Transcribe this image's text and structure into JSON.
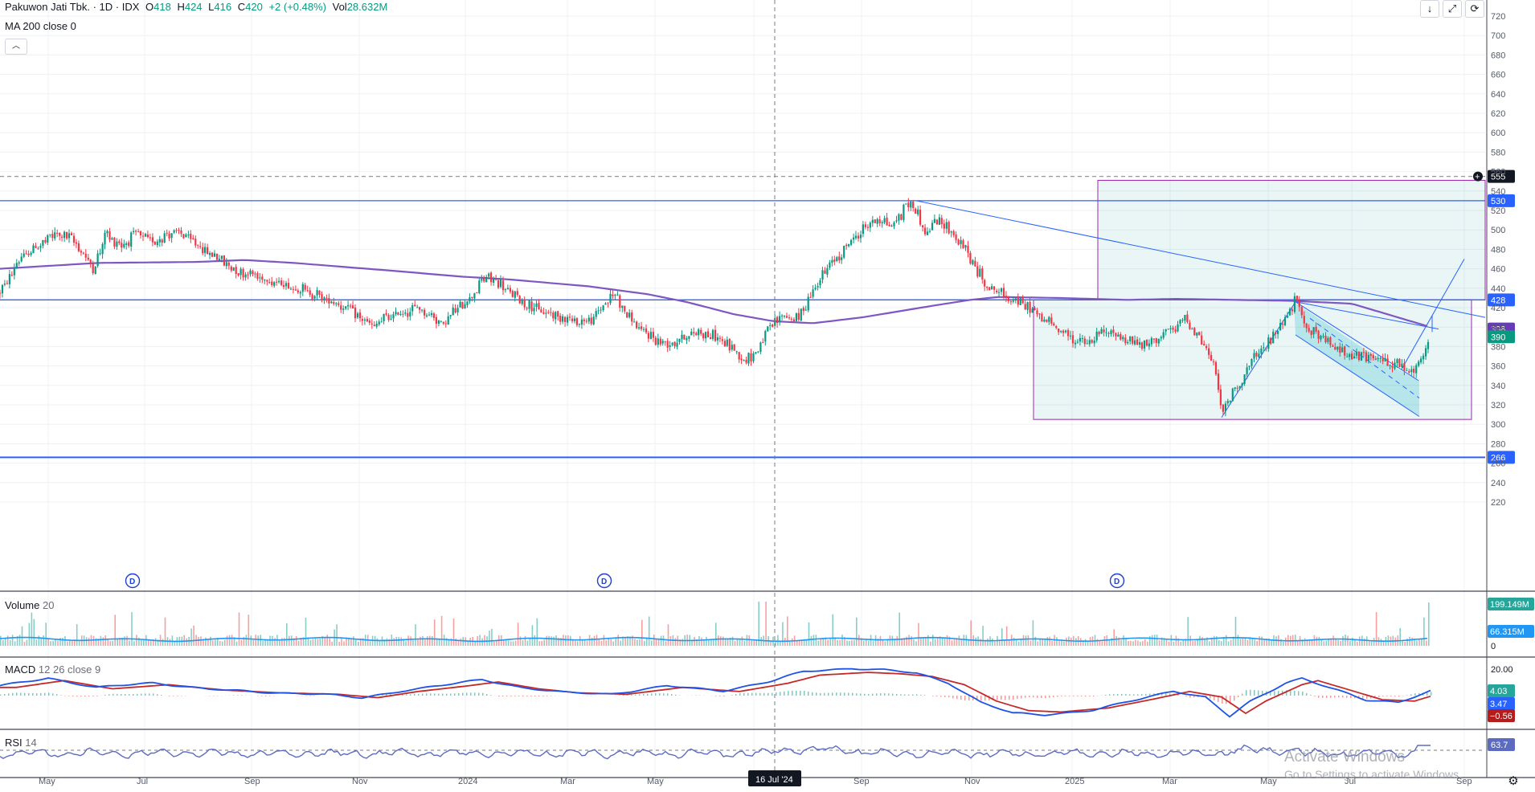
{
  "header": {
    "symbol": "Pakuwon Jati Tbk. · 1D · IDX",
    "o_label": "O",
    "o_value": "418",
    "h_label": "H",
    "h_value": "424",
    "l_label": "L",
    "l_value": "416",
    "c_label": "C",
    "c_value": "420",
    "change": "+2 (+0.48%)",
    "vol_label": "Vol",
    "vol_value": "28.632M",
    "ma_label": "MA 200 close 0"
  },
  "panes": {
    "volume_title": "Volume",
    "volume_param": "20",
    "macd_title": "MACD",
    "macd_params": "12 26 close 9",
    "rsi_title": "RSI",
    "rsi_param": "14"
  },
  "crosshair_date": "16 Jul '24",
  "watermark": {
    "line1": "Activate Windows",
    "line2": "Go to Settings to activate Windows."
  },
  "icons": [
    "download-icon",
    "fullscreen-icon",
    "refresh-icon",
    "collapse-icon",
    "settings-icon"
  ],
  "chart_data": {
    "type": "candlestick",
    "x_ticks": [
      "May",
      "Jul",
      "Sep",
      "Nov",
      "2024",
      "Mar",
      "May",
      "Jul",
      "Sep",
      "Nov",
      "2025",
      "Mar",
      "May",
      "Jul",
      "Sep"
    ],
    "price_axis": {
      "ticks": [
        "720",
        "700",
        "680",
        "660",
        "640",
        "620",
        "600",
        "580",
        "560",
        "540",
        "520",
        "500",
        "480",
        "460",
        "440",
        "420",
        "400",
        "380",
        "360",
        "340",
        "320",
        "300",
        "280",
        "260",
        "240",
        "220"
      ],
      "ylim": [
        220,
        720
      ]
    },
    "price_anchors": [
      [
        0,
        435
      ],
      [
        20,
        470
      ],
      [
        45,
        488
      ],
      [
        58,
        496
      ],
      [
        75,
        490
      ],
      [
        88,
        470
      ],
      [
        95,
        462
      ],
      [
        105,
        482
      ],
      [
        108,
        505
      ],
      [
        112,
        490
      ],
      [
        125,
        485
      ],
      [
        140,
        496
      ],
      [
        155,
        487
      ],
      [
        165,
        493
      ],
      [
        180,
        498
      ],
      [
        195,
        490
      ],
      [
        210,
        478
      ],
      [
        225,
        470
      ],
      [
        240,
        458
      ],
      [
        255,
        455
      ],
      [
        270,
        450
      ],
      [
        290,
        444
      ],
      [
        310,
        438
      ],
      [
        330,
        430
      ],
      [
        350,
        422
      ],
      [
        365,
        412
      ],
      [
        380,
        400
      ],
      [
        395,
        410
      ],
      [
        410,
        415
      ],
      [
        425,
        420
      ],
      [
        440,
        412
      ],
      [
        452,
        402
      ],
      [
        465,
        418
      ],
      [
        480,
        430
      ],
      [
        490,
        445
      ],
      [
        498,
        452
      ],
      [
        505,
        448
      ],
      [
        515,
        440
      ],
      [
        530,
        428
      ],
      [
        545,
        420
      ],
      [
        560,
        414
      ],
      [
        575,
        410
      ],
      [
        590,
        405
      ],
      [
        605,
        408
      ],
      [
        620,
        428
      ],
      [
        628,
        434
      ],
      [
        635,
        420
      ],
      [
        650,
        400
      ],
      [
        665,
        390
      ],
      [
        680,
        382
      ],
      [
        695,
        388
      ],
      [
        710,
        395
      ],
      [
        725,
        392
      ],
      [
        740,
        384
      ],
      [
        752,
        374
      ],
      [
        760,
        365
      ],
      [
        770,
        372
      ],
      [
        780,
        390
      ],
      [
        790,
        405
      ],
      [
        800,
        412
      ],
      [
        815,
        408
      ],
      [
        825,
        430
      ],
      [
        840,
        455
      ],
      [
        855,
        472
      ],
      [
        870,
        490
      ],
      [
        880,
        500
      ],
      [
        895,
        512
      ],
      [
        910,
        505
      ],
      [
        920,
        515
      ],
      [
        925,
        530
      ],
      [
        935,
        520
      ],
      [
        945,
        495
      ],
      [
        955,
        510
      ],
      [
        965,
        505
      ],
      [
        975,
        492
      ],
      [
        985,
        480
      ],
      [
        995,
        462
      ],
      [
        1005,
        445
      ],
      [
        1020,
        435
      ],
      [
        1035,
        428
      ],
      [
        1050,
        420
      ],
      [
        1065,
        408
      ],
      [
        1080,
        398
      ],
      [
        1095,
        388
      ],
      [
        1110,
        382
      ],
      [
        1125,
        395
      ],
      [
        1140,
        392
      ],
      [
        1155,
        385
      ],
      [
        1170,
        380
      ],
      [
        1185,
        392
      ],
      [
        1200,
        398
      ],
      [
        1210,
        410
      ],
      [
        1220,
        395
      ],
      [
        1230,
        380
      ],
      [
        1238,
        362
      ],
      [
        1243,
        340
      ],
      [
        1248,
        312
      ],
      [
        1252,
        320
      ],
      [
        1260,
        335
      ],
      [
        1270,
        350
      ],
      [
        1280,
        368
      ],
      [
        1292,
        380
      ],
      [
        1305,
        400
      ],
      [
        1315,
        414
      ],
      [
        1322,
        428
      ],
      [
        1330,
        405
      ],
      [
        1340,
        395
      ],
      [
        1350,
        388
      ],
      [
        1360,
        380
      ],
      [
        1372,
        375
      ],
      [
        1385,
        370
      ],
      [
        1400,
        368
      ],
      [
        1415,
        365
      ],
      [
        1430,
        360
      ],
      [
        1440,
        352
      ],
      [
        1448,
        360
      ],
      [
        1455,
        378
      ],
      [
        1460,
        390
      ]
    ],
    "ma200_anchors": [
      [
        0,
        460
      ],
      [
        100,
        466
      ],
      [
        200,
        467
      ],
      [
        250,
        469
      ],
      [
        300,
        466
      ],
      [
        400,
        458
      ],
      [
        470,
        452
      ],
      [
        520,
        449
      ],
      [
        600,
        442
      ],
      [
        660,
        434
      ],
      [
        700,
        426
      ],
      [
        750,
        413
      ],
      [
        790,
        406
      ],
      [
        830,
        404
      ],
      [
        880,
        410
      ],
      [
        940,
        420
      ],
      [
        990,
        428
      ],
      [
        1020,
        431
      ],
      [
        1080,
        430
      ],
      [
        1150,
        428
      ],
      [
        1200,
        429
      ],
      [
        1260,
        428
      ],
      [
        1320,
        427
      ],
      [
        1380,
        424
      ],
      [
        1420,
        412
      ],
      [
        1460,
        400
      ]
    ],
    "horizontal_levels": [
      {
        "price": 555,
        "style": "dashed",
        "color": "#9598a1",
        "label": "555"
      },
      {
        "price": 530,
        "style": "solid",
        "color": "#2962ff",
        "label": "530"
      },
      {
        "price": 428,
        "style": "solid",
        "color": "#2962ff",
        "label": "428"
      },
      {
        "price": 266,
        "style": "solid",
        "color": "#2962ff",
        "label": "266"
      }
    ],
    "price_labels": [
      {
        "price": 398,
        "text": "398",
        "color": "#673ab7"
      },
      {
        "price": 390,
        "text": "390",
        "color": "#089981"
      }
    ],
    "dividend_markers": [
      {
        "x": 165,
        "text": "D"
      },
      {
        "x": 752,
        "text": "D"
      },
      {
        "x": 1390,
        "text": "D"
      }
    ],
    "volume": {
      "title": "Volume 20",
      "axis_labels": [
        {
          "text": "199.149M",
          "color": "#26a69a"
        },
        {
          "text": "66.315M",
          "color": "#2196f3"
        },
        {
          "text": "0",
          "color": "#131722"
        }
      ]
    },
    "macd": {
      "title": "MACD 12 26 close 9",
      "axis_labels": [
        {
          "text": "20.00",
          "color": "#131722"
        },
        {
          "text": "4.03",
          "color": "#26a69a"
        },
        {
          "text": "3.47",
          "color": "#2962ff"
        },
        {
          "text": "−0.56",
          "color": "#b71c1c"
        }
      ]
    },
    "rsi": {
      "title": "RSI 14",
      "value": "63.7"
    }
  }
}
